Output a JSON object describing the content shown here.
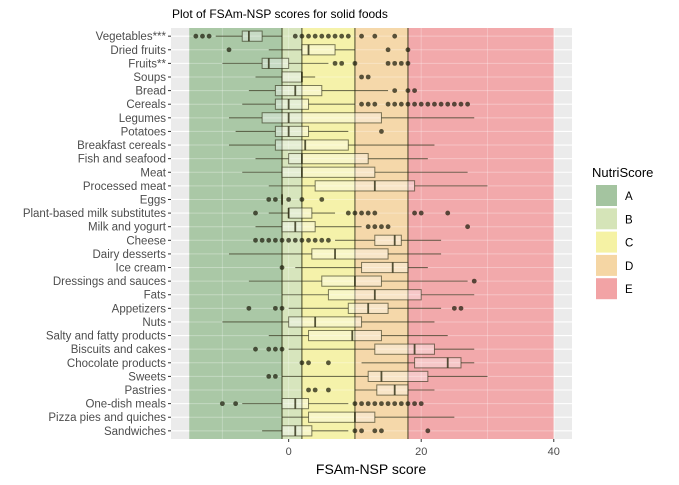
{
  "chart_data": {
    "type": "boxplot",
    "title": "Plot of FSAm-NSP scores for solid foods",
    "xlabel": "FSAm-NSP score",
    "ylabel": "",
    "xlim": [
      -17.75,
      42.75
    ],
    "x_ticks": [
      0,
      20,
      40
    ],
    "x_minor_grid": [
      -10,
      10,
      30
    ],
    "grid": true,
    "legend": {
      "title": "NutriScore",
      "position": "right",
      "entries": [
        {
          "label": "A",
          "color": "#a4c4a0"
        },
        {
          "label": "B",
          "color": "#d5e4b8"
        },
        {
          "label": "C",
          "color": "#f5f2a4"
        },
        {
          "label": "D",
          "color": "#f5d6a4"
        },
        {
          "label": "E",
          "color": "#f2a3a5"
        }
      ]
    },
    "zones": [
      {
        "grade": "A",
        "from": -15,
        "to": -1,
        "color": "#a4c4a0",
        "line": "#2f4a2c"
      },
      {
        "grade": "B",
        "from": -1,
        "to": 2,
        "color": "#d5e4b8",
        "line": "#4a5a24"
      },
      {
        "grade": "C",
        "from": 2,
        "to": 10,
        "color": "#f5f2a4",
        "line": "#5c5520"
      },
      {
        "grade": "D",
        "from": 10,
        "to": 18,
        "color": "#f5d6a4",
        "line": "#5e3f15"
      },
      {
        "grade": "E",
        "from": 18,
        "to": 40,
        "color": "#f2a3a5",
        "line": "#6b1e22"
      }
    ],
    "categories": [
      "Vegetables***",
      "Dried fruits",
      "Fruits**",
      "Soups",
      "Bread",
      "Cereals",
      "Legumes",
      "Potatoes",
      "Breakfast cereals",
      "Fish and seafood",
      "Meat",
      "Processed meat",
      "Eggs",
      "Plant-based milk substitutes",
      "Milk and yogurt",
      "Cheese",
      "Dairy desserts",
      "Ice cream",
      "Dressings and sauces",
      "Fats",
      "Appetizers",
      "Nuts",
      "Salty and fatty products",
      "Biscuits and cakes",
      "Chocolate products",
      "Sweets",
      "Pastries",
      "One-dish meals",
      "Pizza pies and quiches",
      "Sandwiches"
    ],
    "series": [
      {
        "name": "Vegetables***",
        "whisker_low": -11,
        "q1": -7,
        "median": -6,
        "q3": -4,
        "whisker_high": -1,
        "outliers": [
          -14,
          -13,
          -12,
          1,
          2,
          3,
          4,
          5,
          6,
          7,
          8,
          9,
          11,
          13,
          16
        ]
      },
      {
        "name": "Dried fruits",
        "whisker_low": -3,
        "q1": 2,
        "median": 3,
        "q3": 7,
        "whisker_high": 10,
        "outliers": [
          -9,
          15,
          18
        ]
      },
      {
        "name": "Fruits**",
        "whisker_low": -10,
        "q1": -4,
        "median": -3,
        "q3": 0,
        "whisker_high": 6,
        "outliers": [
          7,
          8,
          10,
          15,
          16,
          17,
          18
        ]
      },
      {
        "name": "Soups",
        "whisker_low": -5,
        "q1": -1,
        "median": 2,
        "q3": 2,
        "whisker_high": 4,
        "outliers": [
          11,
          12
        ]
      },
      {
        "name": "Bread",
        "whisker_low": -6,
        "q1": -2,
        "median": 1,
        "q3": 5,
        "whisker_high": 15,
        "outliers": [
          16,
          18,
          19
        ]
      },
      {
        "name": "Cereals",
        "whisker_low": -7,
        "q1": -2,
        "median": 0,
        "q3": 3,
        "whisker_high": 10,
        "outliers": [
          11,
          12,
          13,
          15,
          16,
          17,
          18,
          19,
          20,
          21,
          22,
          23,
          24,
          25,
          26,
          27
        ]
      },
      {
        "name": "Legumes",
        "whisker_low": -9,
        "q1": -4,
        "median": 0,
        "q3": 14,
        "whisker_high": 28,
        "outliers": []
      },
      {
        "name": "Potatoes",
        "whisker_low": -8,
        "q1": -2,
        "median": 0,
        "q3": 3,
        "whisker_high": 9,
        "outliers": [
          14
        ]
      },
      {
        "name": "Breakfast cereals",
        "whisker_low": -9,
        "q1": -2,
        "median": 2.5,
        "q3": 9,
        "whisker_high": 22,
        "outliers": []
      },
      {
        "name": "Fish and seafood",
        "whisker_low": -5,
        "q1": 0,
        "median": 2,
        "q3": 12,
        "whisker_high": 21,
        "outliers": []
      },
      {
        "name": "Meat",
        "whisker_low": -7,
        "q1": -1,
        "median": 2,
        "q3": 13,
        "whisker_high": 27,
        "outliers": []
      },
      {
        "name": "Processed meat",
        "whisker_low": -3,
        "q1": 4,
        "median": 13,
        "q3": 19,
        "whisker_high": 30,
        "outliers": []
      },
      {
        "name": "Eggs",
        "whisker_low": -1,
        "q1": -1,
        "median": -1,
        "q3": -1,
        "whisker_high": -1,
        "outliers": [
          -3,
          -2,
          0,
          2,
          5
        ]
      },
      {
        "name": "Plant-based milk substitutes",
        "whisker_low": -3,
        "q1": 0,
        "median": 0,
        "q3": 3.5,
        "whisker_high": 7,
        "outliers": [
          -5,
          9,
          10,
          11,
          12,
          13,
          19,
          20,
          24
        ]
      },
      {
        "name": "Milk and yogurt",
        "whisker_low": -5,
        "q1": -1,
        "median": 1,
        "q3": 4,
        "whisker_high": 11,
        "outliers": [
          12,
          13,
          14,
          15,
          27
        ]
      },
      {
        "name": "Cheese",
        "whisker_low": 7,
        "q1": 13,
        "median": 16,
        "q3": 17,
        "whisker_high": 23,
        "outliers": [
          -5,
          -4,
          -3,
          -2,
          -1,
          0,
          1,
          2,
          3,
          4,
          5,
          6
        ]
      },
      {
        "name": "Dairy desserts",
        "whisker_low": -9,
        "q1": 3.5,
        "median": 7,
        "q3": 15,
        "whisker_high": 23,
        "outliers": []
      },
      {
        "name": "Ice cream",
        "whisker_low": 1,
        "q1": 11,
        "median": 15.7,
        "q3": 18,
        "whisker_high": 21,
        "outliers": [
          -1
        ]
      },
      {
        "name": "Dressings and sauces",
        "whisker_low": -6,
        "q1": 5,
        "median": 10,
        "q3": 14,
        "whisker_high": 27,
        "outliers": [
          28
        ]
      },
      {
        "name": "Fats",
        "whisker_low": -1,
        "q1": 6,
        "median": 13,
        "q3": 20,
        "whisker_high": 28,
        "outliers": []
      },
      {
        "name": "Appetizers",
        "whisker_low": 0,
        "q1": 9,
        "median": 12,
        "q3": 15,
        "whisker_high": 23,
        "outliers": [
          -6,
          -2,
          -1,
          25,
          26
        ]
      },
      {
        "name": "Nuts",
        "whisker_low": -10,
        "q1": 0,
        "median": 4,
        "q3": 11,
        "whisker_high": 22,
        "outliers": []
      },
      {
        "name": "Salty and fatty products",
        "whisker_low": -3,
        "q1": 3,
        "median": 9.6,
        "q3": 14,
        "whisker_high": 24,
        "outliers": []
      },
      {
        "name": "Biscuits and cakes",
        "whisker_low": 0,
        "q1": 13,
        "median": 19,
        "q3": 22,
        "whisker_high": 28,
        "outliers": [
          -5,
          -3,
          -2,
          -1
        ]
      },
      {
        "name": "Chocolate products",
        "whisker_low": 11,
        "q1": 19,
        "median": 24,
        "q3": 26,
        "whisker_high": 28,
        "outliers": [
          2,
          3,
          6
        ]
      },
      {
        "name": "Sweets",
        "whisker_low": -1,
        "q1": 12,
        "median": 14,
        "q3": 21,
        "whisker_high": 30,
        "outliers": [
          -3,
          -2
        ]
      },
      {
        "name": "Pastries",
        "whisker_low": 10,
        "q1": 13.3,
        "median": 16,
        "q3": 18,
        "whisker_high": 22,
        "outliers": [
          3,
          4,
          6
        ]
      },
      {
        "name": "One-dish meals",
        "whisker_low": -7,
        "q1": -1,
        "median": 1,
        "q3": 3,
        "whisker_high": 9,
        "outliers": [
          -10,
          -8,
          10,
          11,
          12,
          13,
          14,
          15,
          16,
          17,
          18,
          19,
          20
        ]
      },
      {
        "name": "Pizza pies and quiches",
        "whisker_low": -1,
        "q1": 3,
        "median": 10,
        "q3": 13,
        "whisker_high": 25,
        "outliers": []
      },
      {
        "name": "Sandwiches",
        "whisker_low": -4,
        "q1": -1,
        "median": 1,
        "q3": 3.5,
        "whisker_high": 9,
        "outliers": [
          10,
          11,
          13,
          14,
          21
        ]
      }
    ]
  }
}
